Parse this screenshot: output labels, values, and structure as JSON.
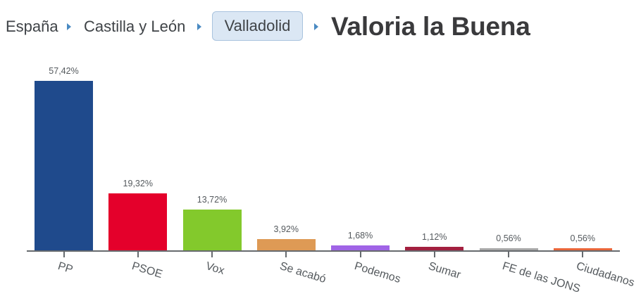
{
  "breadcrumb": {
    "items": [
      "España",
      "Castilla y León",
      "Valladolid"
    ],
    "current": "Valoria la Buena",
    "separator_icon": "caret-right-icon",
    "separator_color": "#4a8ac2"
  },
  "chart_data": {
    "type": "bar",
    "title": "Valoria la Buena",
    "xlabel": "",
    "ylabel": "",
    "categories": [
      "PP",
      "PSOE",
      "Vox",
      "Se acabó",
      "Podemos",
      "Sumar",
      "FE de las JONS",
      "Ciudadanos"
    ],
    "values": [
      57.42,
      19.32,
      13.72,
      3.92,
      1.68,
      1.12,
      0.56,
      0.56
    ],
    "value_labels": [
      "57,42%",
      "19,32%",
      "13,72%",
      "3,92%",
      "1,68%",
      "1,12%",
      "0,56%",
      "0,56%"
    ],
    "colors": [
      "#1f4a8c",
      "#e4002b",
      "#83c92c",
      "#de9a55",
      "#a064e6",
      "#a3203f",
      "#a8a8a8",
      "#e9663a"
    ],
    "ylim": [
      0,
      60
    ],
    "grid": false,
    "legend": "none",
    "x_label_rotation": 17
  }
}
